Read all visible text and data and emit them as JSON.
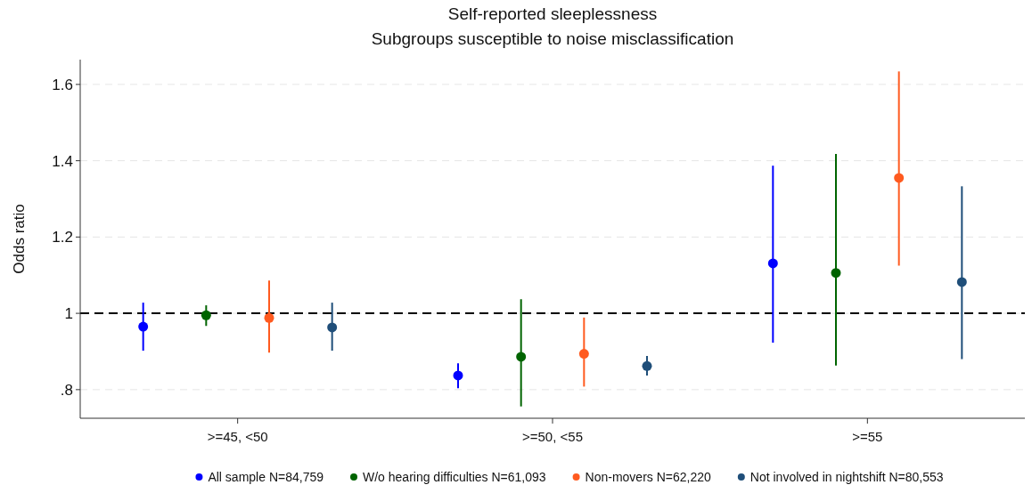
{
  "chart_data": {
    "type": "scatter",
    "title": "Self-reported sleeplessness",
    "subtitle": "Subgroups susceptible to noise misclassification",
    "ylabel": "Odds ratio",
    "categories": [
      ">=45, <50",
      ">=50, <55",
      ">=55"
    ],
    "series": [
      {
        "name": "All sample N=84,759",
        "color": "#0000ff",
        "values": [
          0.965,
          0.837,
          1.131
        ],
        "errors": [
          [
            0.902,
            1.028
          ],
          [
            0.804,
            0.869
          ],
          [
            0.923,
            1.387
          ]
        ]
      },
      {
        "name": "W/o hearing difficulties N=61,093",
        "color": "#006400",
        "values": [
          0.995,
          0.886,
          1.106
        ],
        "errors": [
          [
            0.967,
            1.021
          ],
          [
            0.756,
            1.037
          ],
          [
            0.863,
            1.418
          ]
        ]
      },
      {
        "name": "Non-movers N=62,220",
        "color": "#ff5a1f",
        "values": [
          0.988,
          0.894,
          1.355
        ],
        "errors": [
          [
            0.897,
            1.086
          ],
          [
            0.808,
            0.989
          ],
          [
            1.125,
            1.634
          ]
        ]
      },
      {
        "name": "Not involved in nightshift N=80,553",
        "color": "#1f4e79",
        "values": [
          0.963,
          0.862,
          1.082
        ],
        "errors": [
          [
            0.902,
            1.028
          ],
          [
            0.837,
            0.888
          ],
          [
            0.88,
            1.333
          ]
        ]
      }
    ],
    "ylim": [
      0.725,
      1.665
    ],
    "yticks": [
      {
        "value": 0.8,
        "label": ".8"
      },
      1,
      1.2,
      1.4,
      1.6
    ],
    "ref_lines": [
      {
        "axis": "y",
        "value": 1,
        "color": "#000000",
        "line_style": "dashed"
      }
    ],
    "grid": "y",
    "legend": "bottom",
    "marker": "circle"
  }
}
